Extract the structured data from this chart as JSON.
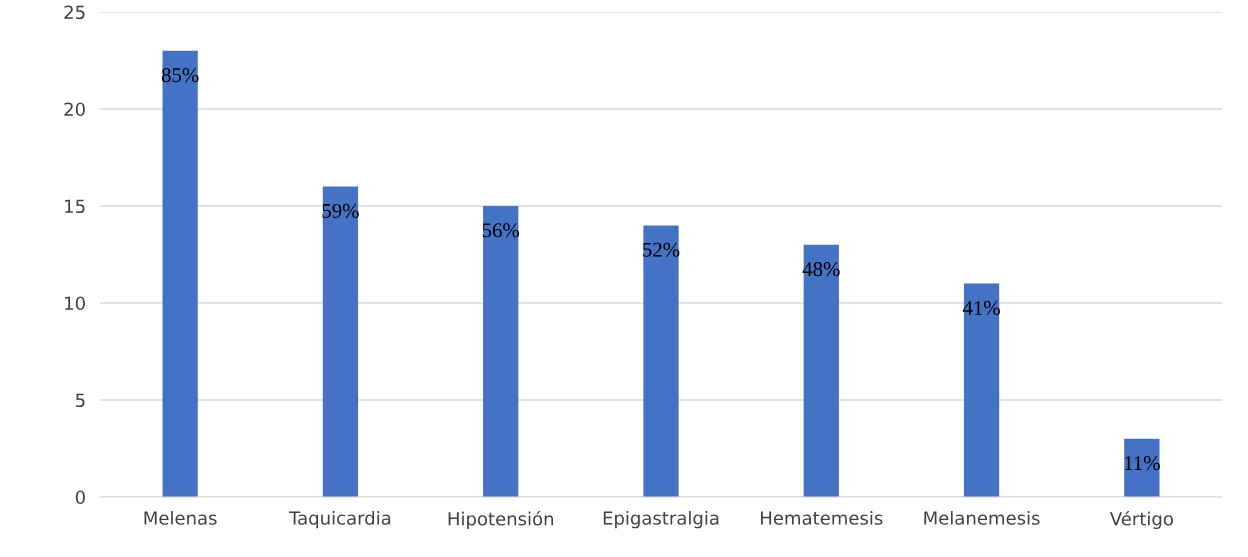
{
  "chart_data": {
    "type": "bar",
    "categories": [
      "Melenas",
      "Taquicardia",
      "Hipotensión",
      "Epigastralgia",
      "Hematemesis",
      "Melanemesis",
      "Vértigo"
    ],
    "values": [
      23,
      16,
      15,
      14,
      13,
      11,
      3
    ],
    "annotations": [
      {
        "text": "85%",
        "x": "Melenas",
        "y": 23
      },
      {
        "text": "59%",
        "x": "Taquicardia",
        "y": 16
      },
      {
        "text": "56%",
        "x": "Hipotensión",
        "y": 15
      },
      {
        "text": "52%",
        "x": "Epigastralgia",
        "y": 14
      },
      {
        "text": "48%",
        "x": "Hematemesis",
        "y": 13
      },
      {
        "text": "41%",
        "x": "Melanemesis",
        "y": 11
      },
      {
        "text": "11%",
        "x": "Vértigo",
        "y": 3
      }
    ],
    "color": "#4472c4",
    "ylim": [
      0,
      25
    ],
    "yticks": [
      0,
      5,
      10,
      15,
      20,
      25
    ],
    "grid": "y",
    "legend": false
  }
}
